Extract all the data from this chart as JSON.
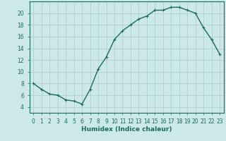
{
  "x": [
    0,
    1,
    2,
    3,
    4,
    5,
    6,
    7,
    8,
    9,
    10,
    11,
    12,
    13,
    14,
    15,
    16,
    17,
    18,
    19,
    20,
    21,
    22,
    23
  ],
  "y": [
    8,
    7,
    6.2,
    6,
    5.2,
    5,
    4.5,
    7,
    10.5,
    12.5,
    15.5,
    17,
    18,
    19,
    19.5,
    20.5,
    20.5,
    21,
    21,
    20.5,
    20,
    17.5,
    15.5,
    13
  ],
  "line_color": "#1a6b5a",
  "marker": "+",
  "marker_size": 3,
  "bg_color": "#cce8e8",
  "grid_color": "#aacccc",
  "xlabel": "Humidex (Indice chaleur)",
  "xlim": [
    -0.5,
    23.5
  ],
  "ylim": [
    3,
    22
  ],
  "yticks": [
    4,
    6,
    8,
    10,
    12,
    14,
    16,
    18,
    20
  ],
  "xticks": [
    0,
    1,
    2,
    3,
    4,
    5,
    6,
    7,
    8,
    9,
    10,
    11,
    12,
    13,
    14,
    15,
    16,
    17,
    18,
    19,
    20,
    21,
    22,
    23
  ],
  "xlabel_fontsize": 6.5,
  "tick_fontsize": 5.5,
  "linewidth": 1.0
}
